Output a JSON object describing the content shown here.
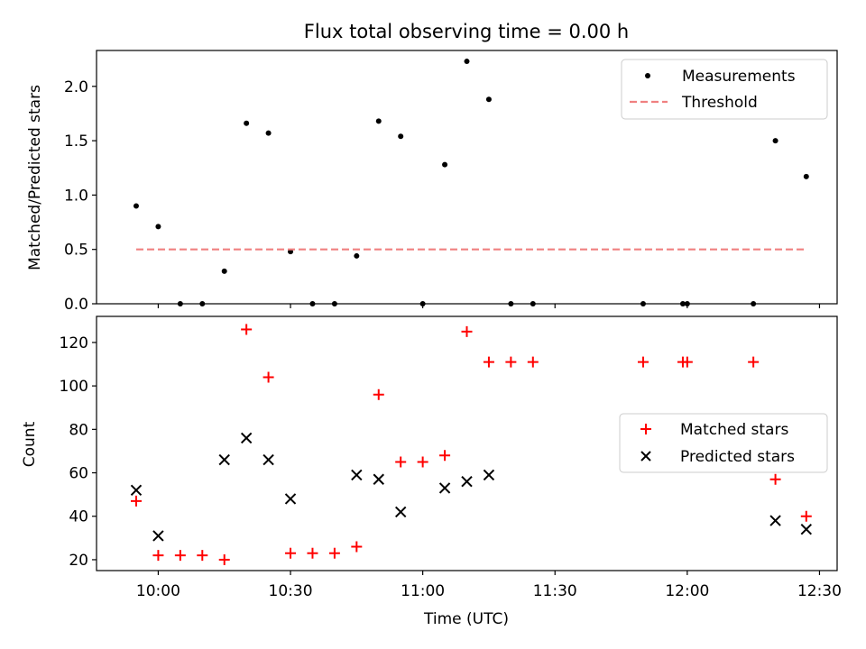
{
  "chart_data": [
    {
      "type": "scatter",
      "title": "Flux total observing time = 0.00 h",
      "xlabel": "",
      "ylabel": "Matched/Predicted stars",
      "ylim": [
        0,
        2.33
      ],
      "yticks": [
        0.0,
        0.5,
        1.0,
        1.5,
        2.0
      ],
      "ytick_labels": [
        "0.0",
        "0.5",
        "1.0",
        "1.5",
        "2.0"
      ],
      "xlim_minutes": [
        586,
        754
      ],
      "legend_position": "top-right",
      "series": [
        {
          "name": "Measurements",
          "marker": "dot",
          "color": "#000000",
          "x_minutes": [
            595,
            600,
            605,
            610,
            615,
            620,
            625,
            630,
            635,
            640,
            645,
            650,
            655,
            660,
            665,
            670,
            675,
            680,
            685,
            710,
            719,
            720,
            735,
            740,
            747
          ],
          "y": [
            0.9,
            0.71,
            0.0,
            0.0,
            0.3,
            1.66,
            1.57,
            0.48,
            0.0,
            0.0,
            0.44,
            1.68,
            1.54,
            0.0,
            1.28,
            2.23,
            1.88,
            0.0,
            0.0,
            0.0,
            0.0,
            0.0,
            0.0,
            1.5,
            1.17
          ]
        },
        {
          "name": "Threshold",
          "marker": "dashed-line",
          "color": "#f08080",
          "x_minutes": [
            595,
            747
          ],
          "y": [
            0.5,
            0.5
          ]
        }
      ]
    },
    {
      "type": "scatter",
      "title": "",
      "xlabel": "Time (UTC)",
      "ylabel": "Count",
      "ylim": [
        15,
        132
      ],
      "yticks": [
        20,
        40,
        60,
        80,
        100,
        120
      ],
      "ytick_labels": [
        "20",
        "40",
        "60",
        "80",
        "100",
        "120"
      ],
      "xlim_minutes": [
        586,
        754
      ],
      "xticks_minutes": [
        600,
        630,
        660,
        690,
        720,
        750
      ],
      "xtick_labels": [
        "10:00",
        "10:30",
        "11:00",
        "11:30",
        "12:00",
        "12:30"
      ],
      "legend_position": "center-right",
      "series": [
        {
          "name": "Matched stars",
          "marker": "plus",
          "color": "#ff0000",
          "x_minutes": [
            595,
            600,
            605,
            610,
            615,
            620,
            625,
            630,
            635,
            640,
            645,
            650,
            655,
            660,
            665,
            670,
            675,
            680,
            685,
            710,
            719,
            720,
            735,
            740,
            747
          ],
          "y": [
            47,
            22,
            22,
            22,
            20,
            126,
            104,
            23,
            23,
            23,
            26,
            96,
            65,
            65,
            68,
            125,
            111,
            111,
            111,
            111,
            111,
            111,
            111,
            57,
            40
          ]
        },
        {
          "name": "Predicted stars",
          "marker": "x",
          "color": "#000000",
          "x_minutes": [
            595,
            600,
            615,
            620,
            625,
            630,
            645,
            650,
            655,
            665,
            670,
            675,
            740,
            747
          ],
          "y": [
            52,
            31,
            66,
            76,
            66,
            48,
            59,
            57,
            42,
            53,
            56,
            59,
            38,
            34
          ]
        }
      ]
    }
  ]
}
